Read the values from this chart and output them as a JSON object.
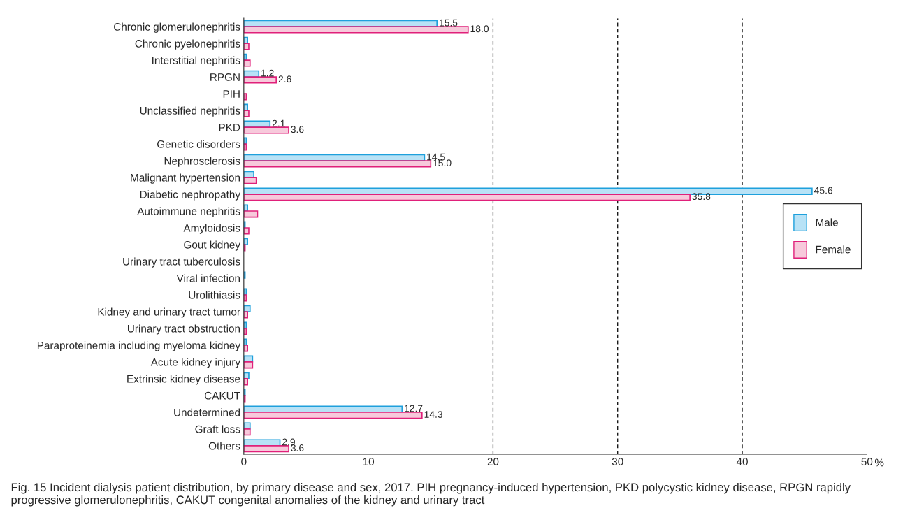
{
  "chart_data": {
    "type": "bar",
    "orientation": "horizontal",
    "xlabel": "%",
    "categories": [
      "Chronic glomerulonephritis",
      "Chronic pyelonephritis",
      "Interstitial nephritis",
      "RPGN",
      "PIH",
      "Unclassified nephritis",
      "PKD",
      "Genetic disorders",
      "Nephrosclerosis",
      "Malignant hypertension",
      "Diabetic nephropathy",
      "Autoimmune nephritis",
      "Amyloidosis",
      "Gout kidney",
      "Urinary tract tuberculosis",
      "Viral infection",
      "Urolithiasis",
      "Kidney and urinary tract tumor",
      "Urinary tract obstruction",
      "Paraproteinemia including myeloma kidney",
      "Acute kidney injury",
      "Extrinsic kidney disease",
      "CAKUT",
      "Undetermined",
      "Graft loss",
      "Others"
    ],
    "series": [
      {
        "name": "Male",
        "color": "#b8e2f6",
        "values": [
          15.5,
          0.3,
          0.2,
          1.2,
          0.0,
          0.3,
          2.1,
          0.2,
          14.5,
          0.8,
          45.6,
          0.3,
          0.1,
          0.3,
          0.0,
          0.1,
          0.2,
          0.5,
          0.2,
          0.2,
          0.7,
          0.4,
          0.1,
          12.7,
          0.5,
          2.9
        ],
        "value_labels": [
          "15.5",
          null,
          null,
          "1.2",
          null,
          null,
          "2.1",
          null,
          "14.5",
          null,
          "45.6",
          null,
          null,
          null,
          null,
          null,
          null,
          null,
          null,
          null,
          null,
          null,
          null,
          "12.7",
          null,
          "2.9"
        ]
      },
      {
        "name": "Female",
        "color": "#f7c9db",
        "values": [
          18.0,
          0.4,
          0.5,
          2.6,
          0.2,
          0.4,
          3.6,
          0.2,
          15.0,
          1.0,
          35.8,
          1.1,
          0.4,
          0.1,
          0.0,
          0.0,
          0.2,
          0.3,
          0.2,
          0.3,
          0.7,
          0.3,
          0.1,
          14.3,
          0.5,
          3.6
        ],
        "value_labels": [
          "18.0",
          null,
          null,
          "2.6",
          null,
          null,
          "3.6",
          null,
          "15.0",
          null,
          "35.8",
          null,
          null,
          null,
          null,
          null,
          null,
          null,
          null,
          null,
          null,
          null,
          null,
          "14.3",
          null,
          "3.6"
        ]
      }
    ],
    "xlim": [
      0,
      50
    ],
    "xticks": [
      0,
      10,
      20,
      30,
      40,
      50
    ],
    "ref_lines": [
      {
        "axis": "x",
        "value": 20,
        "line_style": "dashed",
        "color": "#000000"
      },
      {
        "axis": "x",
        "value": 30,
        "line_style": "dashed",
        "color": "#000000"
      },
      {
        "axis": "x",
        "value": 40,
        "line_style": "dashed",
        "color": "#000000"
      }
    ],
    "legend": "right",
    "grid": false,
    "annotations": [
      "Fig. 15 Incident dialysis patient distribution, by primary disease and sex, 2017. PIH pregnancy-induced hypertension, PKD polycystic kidney disease, RPGN rapidly progressive glomerulonephritis, CAKUT congenital anomalies of the kidney and urinary tract"
    ]
  }
}
